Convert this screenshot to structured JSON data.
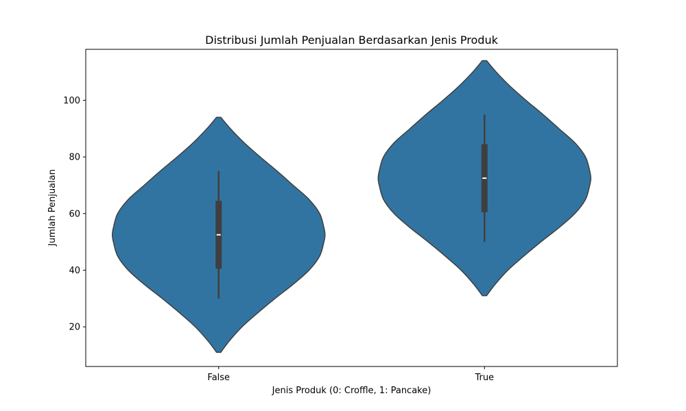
{
  "chart_data": {
    "type": "violin",
    "title": "Distribusi Jumlah Penjualan Berdasarkan Jenis Produk",
    "xlabel": "Jenis Produk (0: Croffle, 1: Pancake)",
    "ylabel": "Jumlah Penjualan",
    "categories": [
      "False",
      "True"
    ],
    "ylim": [
      6,
      118
    ],
    "yticks": [
      20,
      40,
      60,
      80,
      100
    ],
    "grid": false,
    "color": "#3274a1",
    "edge_color": "#3f3f3f",
    "series": [
      {
        "category": "False",
        "min": 30,
        "q1": 40.5,
        "median": 52.5,
        "q3": 64.5,
        "max": 75,
        "kde_low": 11,
        "kde_high": 94,
        "density": [
          [
            11,
            0.02
          ],
          [
            15,
            0.1
          ],
          [
            20,
            0.22
          ],
          [
            25,
            0.37
          ],
          [
            30,
            0.53
          ],
          [
            35,
            0.7
          ],
          [
            40,
            0.85
          ],
          [
            45,
            0.95
          ],
          [
            50,
            0.99
          ],
          [
            52.5,
            1.0
          ],
          [
            55,
            0.99
          ],
          [
            60,
            0.95
          ],
          [
            65,
            0.85
          ],
          [
            70,
            0.7
          ],
          [
            75,
            0.55
          ],
          [
            80,
            0.39
          ],
          [
            85,
            0.24
          ],
          [
            90,
            0.11
          ],
          [
            94,
            0.02
          ]
        ]
      },
      {
        "category": "True",
        "min": 50,
        "q1": 60.5,
        "median": 72.5,
        "q3": 84.5,
        "max": 95,
        "kde_low": 31,
        "kde_high": 114,
        "density": [
          [
            31,
            0.02
          ],
          [
            35,
            0.1
          ],
          [
            40,
            0.22
          ],
          [
            45,
            0.37
          ],
          [
            50,
            0.53
          ],
          [
            55,
            0.7
          ],
          [
            60,
            0.85
          ],
          [
            65,
            0.95
          ],
          [
            70,
            0.99
          ],
          [
            72.5,
            1.0
          ],
          [
            75,
            0.99
          ],
          [
            80,
            0.95
          ],
          [
            85,
            0.85
          ],
          [
            90,
            0.7
          ],
          [
            95,
            0.55
          ],
          [
            100,
            0.39
          ],
          [
            105,
            0.24
          ],
          [
            110,
            0.11
          ],
          [
            114,
            0.02
          ]
        ]
      }
    ]
  }
}
